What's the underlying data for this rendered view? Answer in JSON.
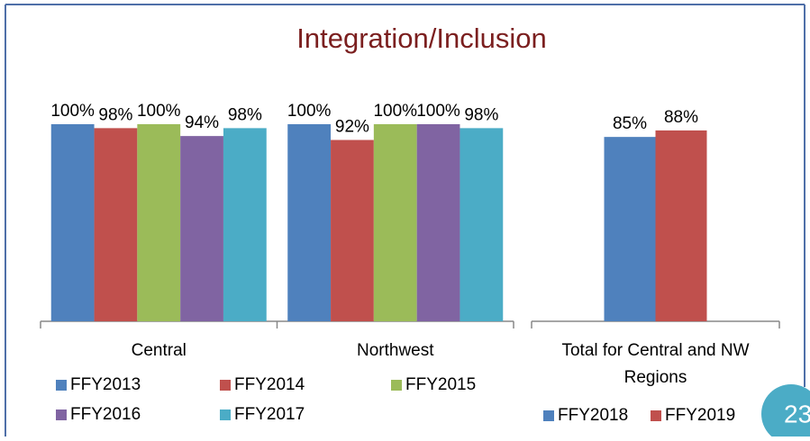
{
  "title": "Integration/Inclusion",
  "page_number": "23",
  "chart_data": [
    {
      "type": "bar",
      "categories": [
        "Central",
        "Northwest"
      ],
      "ylim": [
        0,
        100
      ],
      "series": [
        {
          "name": "FFY2013",
          "color": "#4f81bd",
          "values": [
            100,
            100
          ],
          "value_labels": [
            "100%",
            "100%"
          ]
        },
        {
          "name": "FFY2014",
          "color": "#c0504d",
          "values": [
            98,
            92
          ],
          "value_labels": [
            "98%",
            "92%"
          ]
        },
        {
          "name": "FFY2015",
          "color": "#9bbb59",
          "values": [
            100,
            100
          ],
          "value_labels": [
            "100%",
            "100%"
          ]
        },
        {
          "name": "FFY2016",
          "color": "#8064a2",
          "values": [
            94,
            100
          ],
          "value_labels": [
            "94%",
            "100%"
          ]
        },
        {
          "name": "FFY2017",
          "color": "#4bacc6",
          "values": [
            98,
            98
          ],
          "value_labels": [
            "98%",
            "98%"
          ]
        }
      ]
    },
    {
      "type": "bar",
      "categories": [
        "Total for Central and NW Regions"
      ],
      "ylim": [
        0,
        100
      ],
      "series": [
        {
          "name": "FFY2018",
          "color": "#4f81bd",
          "values": [
            85
          ],
          "value_labels": [
            "85%"
          ]
        },
        {
          "name": "FFY2019",
          "color": "#c0504d",
          "values": [
            88
          ],
          "value_labels": [
            "88%"
          ]
        }
      ]
    }
  ]
}
